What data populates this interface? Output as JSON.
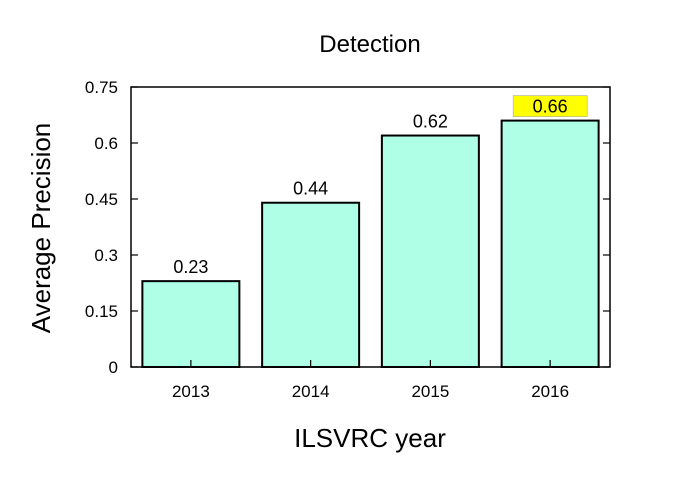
{
  "chart_data": {
    "type": "bar",
    "title": "Detection",
    "xlabel": "ILSVRC year",
    "ylabel": "Average Precision",
    "categories": [
      "2013",
      "2014",
      "2015",
      "2016"
    ],
    "values": [
      0.23,
      0.44,
      0.62,
      0.66
    ],
    "data_labels": [
      "0.23",
      "0.44",
      "0.62",
      "0.66"
    ],
    "yticks": [
      0,
      0.15,
      0.3,
      0.45,
      0.6,
      0.75
    ],
    "ytick_labels": [
      "0",
      "0.15",
      "0.3",
      "0.45",
      "0.6",
      "0.75"
    ],
    "ylim": [
      0,
      0.75
    ],
    "grid": false,
    "legend": "none",
    "highlighted_category": "2016",
    "colors": {
      "bar_fill": "#aeffe6",
      "bar_stroke": "#000000",
      "highlight_label_bg": "#ffff00"
    }
  }
}
